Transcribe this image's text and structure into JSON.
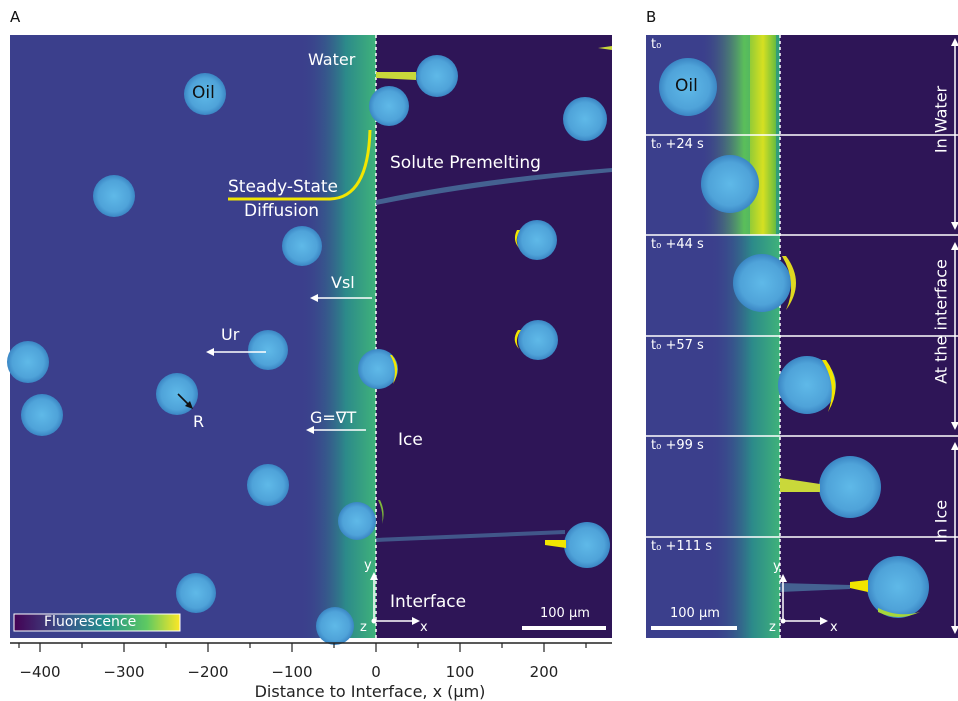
{
  "panel_a": {
    "letter": "A",
    "labels": {
      "water": "Water",
      "oil": "Oil",
      "solute_premelting": "Solute Premelting",
      "steady_state_1": "Steady-State",
      "steady_state_2": "Diffusion",
      "vsl": "Vsl",
      "ur": "Ur",
      "r": "R",
      "gradient": "G=∇T",
      "ice": "Ice",
      "interface": "Interface",
      "axis_y": "y",
      "axis_z": "z",
      "axis_x": "x",
      "scale_bar": "100 µm",
      "colorbar": "Fluorescence"
    },
    "x_axis": {
      "label": "Distance to Interface, x (µm)",
      "ticks": [
        "−400",
        "−300",
        "−200",
        "−100",
        "0",
        "100",
        "200"
      ]
    }
  },
  "panel_b": {
    "letter": "B",
    "frames": [
      "t₀",
      "t₀ +24 s",
      "t₀ +44 s",
      "t₀ +57 s",
      "t₀ +99 s",
      "t₀ +111 s"
    ],
    "oil": "Oil",
    "side_labels": [
      "In Water",
      "At the interface",
      "In Ice"
    ],
    "scale_bar": "100 µm",
    "axis_y": "y",
    "axis_z": "z",
    "axis_x": "x"
  },
  "colors": {
    "water_bg": "#3b3f8c",
    "ice_bg": "#2e1557",
    "droplet": "#4fa3d9",
    "front": "#2aa17a",
    "yellow": "#f2e600"
  }
}
